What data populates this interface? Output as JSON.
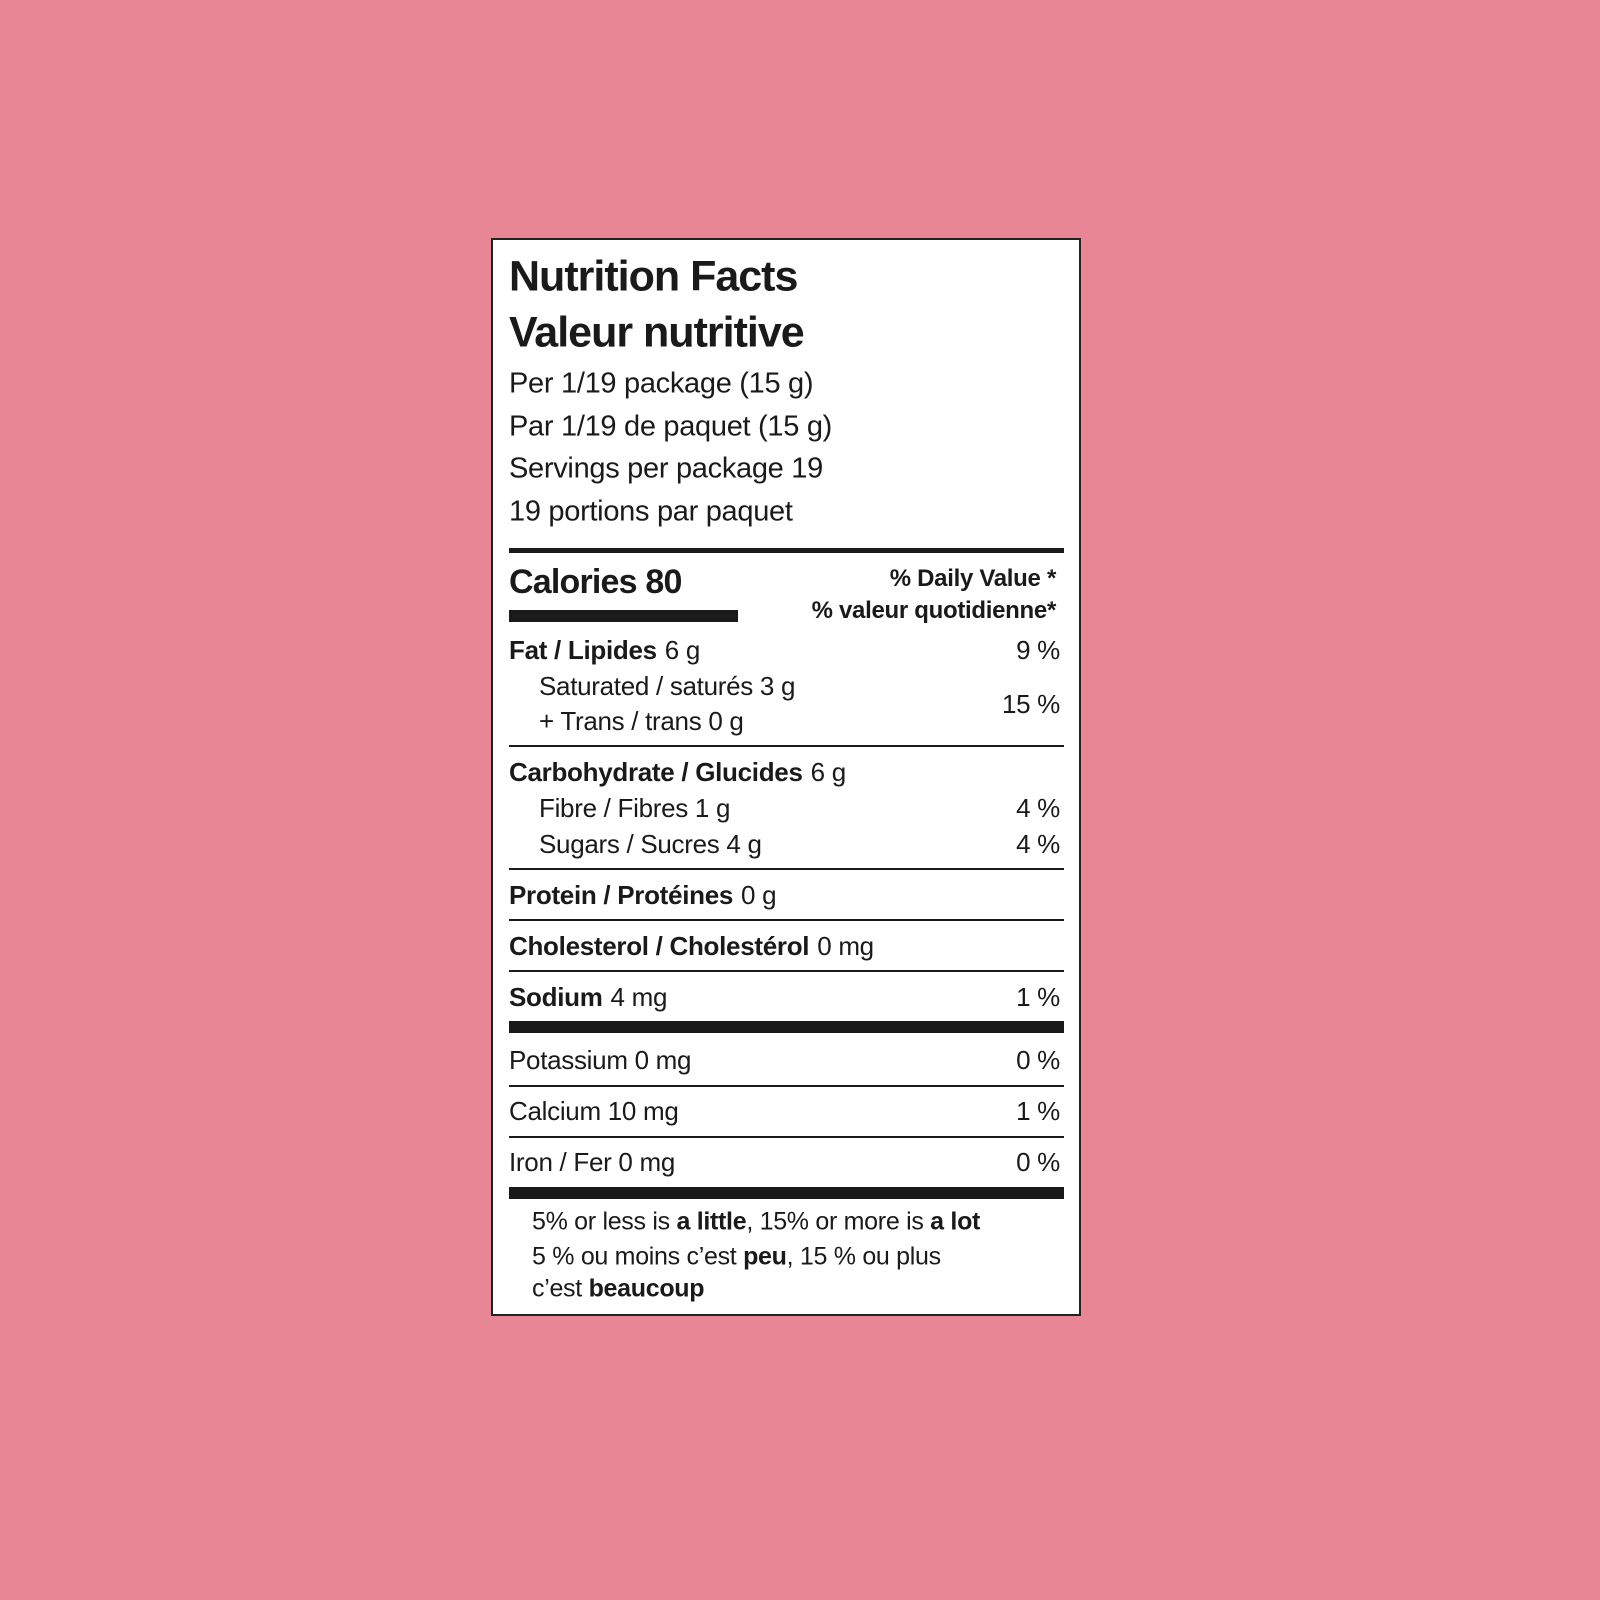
{
  "header": {
    "title": [
      "Nutrition Facts",
      "Valeur nutritive"
    ],
    "serving": [
      "Per 1/19 package (15 g)",
      "Par 1/19 de paquet (15 g)",
      "Servings per package 19",
      "19 portions par paquet"
    ]
  },
  "calories": "Calories 80",
  "daily_value": [
    "% Daily Value *",
    "% valeur quotidienne*"
  ],
  "nutrients": [
    {
      "name": "Fat / Lipides",
      "amount": "6 g",
      "dv": "9 %"
    },
    {
      "lines": [
        "Saturated / saturés 3 g",
        "+ Trans / trans 0 g"
      ],
      "dv": "15 %"
    },
    {
      "name": "Carbohydrate / Glucides",
      "amount": "6 g"
    },
    {
      "line": "Fibre / Fibres 1 g",
      "dv": "4 %"
    },
    {
      "line": "Sugars / Sucres 4 g",
      "dv": "4 %"
    },
    {
      "name": "Protein / Protéines",
      "amount": "0 g"
    },
    {
      "name": "Cholesterol / Cholestérol",
      "amount": "0 mg"
    },
    {
      "name": "Sodium",
      "amount": "4 mg",
      "dv": "1 %"
    }
  ],
  "minerals": [
    {
      "line": "Potassium 0 mg",
      "dv": "0 %"
    },
    {
      "line": "Calcium 10 mg",
      "dv": "1 %"
    },
    {
      "line": "Iron / Fer 0 mg",
      "dv": "0 %"
    }
  ],
  "footer": [
    [
      "5% or less is ",
      "a little",
      ", 15% or more is ",
      "a lot"
    ],
    [
      "5 % ou moins c’est ",
      "peu",
      ", 15 % ou plus"
    ],
    [
      "c’est ",
      "beaucoup"
    ]
  ]
}
